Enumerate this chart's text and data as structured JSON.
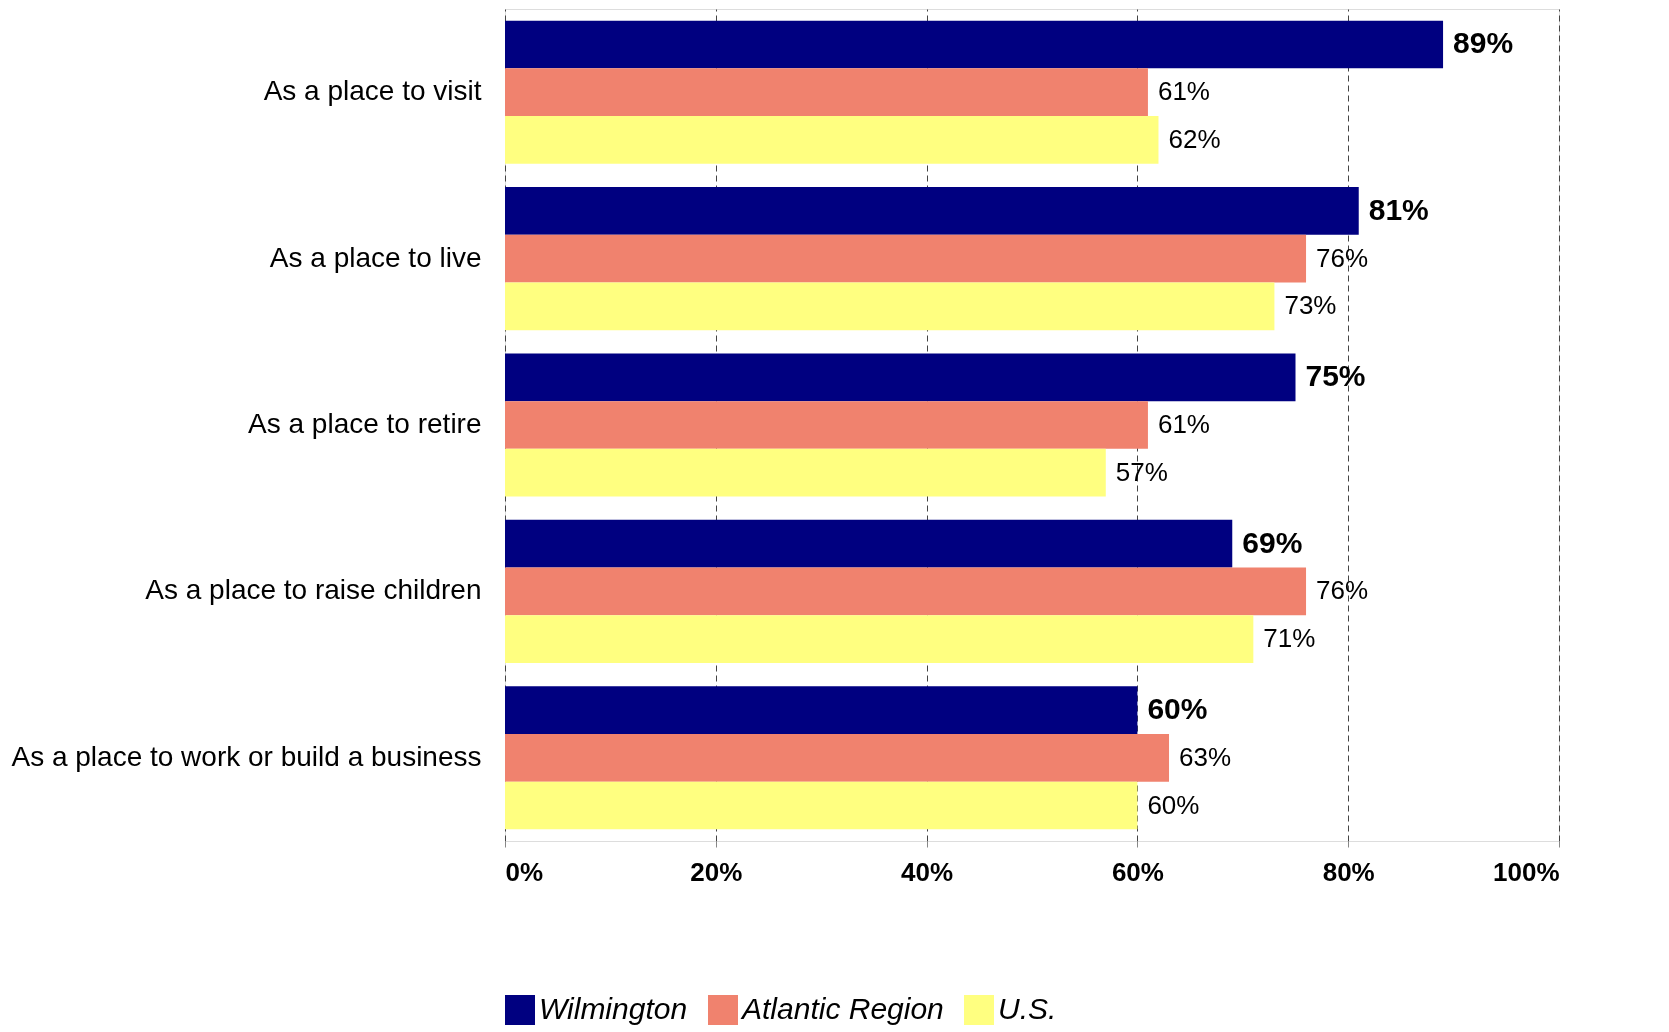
{
  "chart_data": {
    "type": "bar",
    "orientation": "horizontal",
    "categories": [
      "As a place to visit",
      "As a place to live",
      "As a place to retire",
      "As a place to raise children",
      "As a place to work or build a business"
    ],
    "series": [
      {
        "name": "Wilmington",
        "color": "#000080",
        "values": [
          89,
          81,
          75,
          69,
          60
        ],
        "value_labels": [
          "89%",
          "81%",
          "75%",
          "69%",
          "60%"
        ]
      },
      {
        "name": "Atlantic Region",
        "color": "#f0826e",
        "values": [
          61,
          76,
          61,
          76,
          63
        ],
        "value_labels": [
          "61%",
          "76%",
          "61%",
          "76%",
          "63%"
        ]
      },
      {
        "name": "U.S.",
        "color": "#ffff80",
        "values": [
          62,
          73,
          57,
          71,
          60
        ],
        "value_labels": [
          "62%",
          "73%",
          "57%",
          "71%",
          "60%"
        ]
      }
    ],
    "xlim": [
      0,
      100
    ],
    "xticks": [
      {
        "value": 0,
        "label": "0%"
      },
      {
        "value": 20,
        "label": "20%"
      },
      {
        "value": 40,
        "label": "40%"
      },
      {
        "value": 60,
        "label": "60%"
      },
      {
        "value": 80,
        "label": "80%"
      },
      {
        "value": 100,
        "label": "100%"
      }
    ],
    "grid": "x",
    "legend": "bottom"
  }
}
